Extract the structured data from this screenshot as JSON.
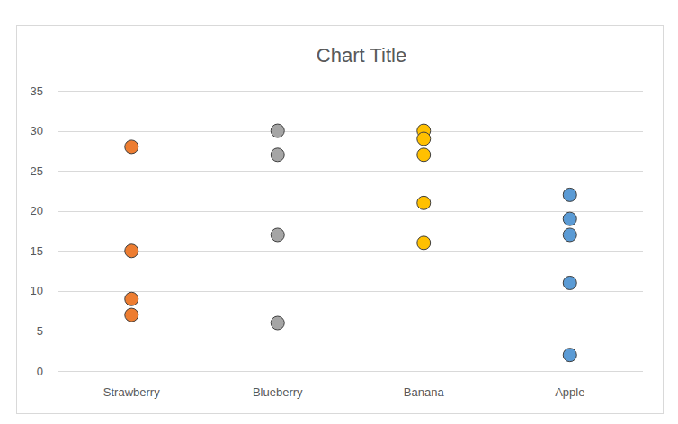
{
  "chart_data": {
    "type": "strip",
    "title": "Chart Title",
    "categories": [
      "Strawberry",
      "Blueberry",
      "Banana",
      "Apple"
    ],
    "values": [
      [
        28,
        15,
        9,
        7
      ],
      [
        30,
        27,
        17,
        6
      ],
      [
        30,
        29,
        27,
        21,
        16
      ],
      [
        22,
        19,
        17,
        11,
        2
      ]
    ],
    "colors": [
      "#ed7d31",
      "#a5a5a5",
      "#ffc000",
      "#5b9bd5"
    ],
    "ylim": [
      0,
      35
    ],
    "yticks": [
      0,
      5,
      10,
      15,
      20,
      25,
      30,
      35
    ],
    "grid": true,
    "marker": "circle"
  }
}
